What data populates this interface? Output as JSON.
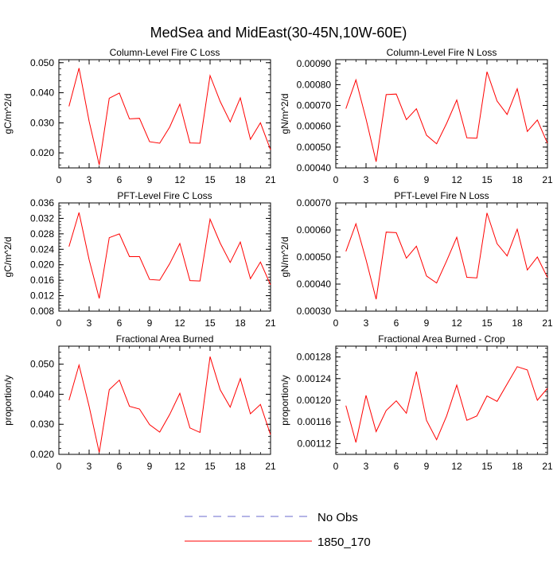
{
  "figure": {
    "title": "MedSea and MidEast(30-45N,10W-60E)",
    "legend": [
      {
        "label": "No Obs",
        "color": "#6a6acd",
        "dash": true
      },
      {
        "label": "1850_170",
        "color": "#ff0000",
        "dash": false
      }
    ]
  },
  "chart_data": [
    {
      "type": "line",
      "title": "Column-Level Fire C Loss",
      "ylabel": "gC/m^2/d",
      "xlim": [
        0,
        21
      ],
      "ylim": [
        0.015,
        0.051
      ],
      "xticks": [
        0,
        3,
        6,
        9,
        12,
        15,
        18,
        21
      ],
      "xtick_labels": [
        "0",
        "3",
        "6",
        "9",
        "12",
        "15",
        "18",
        "21"
      ],
      "yticks": [
        0.02,
        0.03,
        0.04,
        0.05
      ],
      "ytick_labels": [
        "0.020",
        "0.030",
        "0.040",
        "0.050"
      ],
      "x": [
        1,
        2,
        3,
        4,
        5,
        6,
        7,
        8,
        9,
        10,
        11,
        12,
        13,
        14,
        15,
        16,
        17,
        18,
        19,
        20,
        21
      ],
      "series": [
        {
          "name": "1850_170",
          "values": [
            0.0355,
            0.0482,
            0.0305,
            0.016,
            0.0382,
            0.0399,
            0.0313,
            0.0315,
            0.0237,
            0.0232,
            0.0286,
            0.0362,
            0.0233,
            0.0232,
            0.0457,
            0.0371,
            0.0303,
            0.0383,
            0.0245,
            0.03,
            0.021
          ]
        }
      ]
    },
    {
      "type": "line",
      "title": "Column-Level Fire N Loss",
      "ylabel": "gN/m^2/d",
      "xlim": [
        0,
        21
      ],
      "ylim": [
        0.0004,
        0.00092
      ],
      "xticks": [
        0,
        3,
        6,
        9,
        12,
        15,
        18,
        21
      ],
      "xtick_labels": [
        "0",
        "3",
        "6",
        "9",
        "12",
        "15",
        "18",
        "21"
      ],
      "yticks": [
        0.0004,
        0.0005,
        0.0006,
        0.0007,
        0.0008,
        0.0009
      ],
      "ytick_labels": [
        "0.00040",
        "0.00050",
        "0.00060",
        "0.00070",
        "0.00080",
        "0.00090"
      ],
      "x": [
        1,
        2,
        3,
        4,
        5,
        6,
        7,
        8,
        9,
        10,
        11,
        12,
        13,
        14,
        15,
        16,
        17,
        18,
        19,
        20,
        21
      ],
      "series": [
        {
          "name": "1850_170",
          "values": [
            0.000685,
            0.000823,
            0.000635,
            0.00043,
            0.000752,
            0.000755,
            0.000632,
            0.000684,
            0.000557,
            0.000516,
            0.000614,
            0.000726,
            0.000545,
            0.000543,
            0.000862,
            0.000721,
            0.000657,
            0.00078,
            0.000575,
            0.00063,
            0.000518
          ]
        }
      ]
    },
    {
      "type": "line",
      "title": "PFT-Level Fire C Loss",
      "ylabel": "gC/m^2/d",
      "xlim": [
        0,
        21
      ],
      "ylim": [
        0.008,
        0.036
      ],
      "xticks": [
        0,
        3,
        6,
        9,
        12,
        15,
        18,
        21
      ],
      "xtick_labels": [
        "0",
        "3",
        "6",
        "9",
        "12",
        "15",
        "18",
        "21"
      ],
      "yticks": [
        0.008,
        0.012,
        0.016,
        0.02,
        0.024,
        0.028,
        0.032,
        0.036
      ],
      "ytick_labels": [
        "0.008",
        "0.012",
        "0.016",
        "0.020",
        "0.024",
        "0.028",
        "0.032",
        "0.036"
      ],
      "x": [
        1,
        2,
        3,
        4,
        5,
        6,
        7,
        8,
        9,
        10,
        11,
        12,
        13,
        14,
        15,
        16,
        17,
        18,
        19,
        20,
        21
      ],
      "series": [
        {
          "name": "1850_170",
          "values": [
            0.0247,
            0.0335,
            0.0213,
            0.0113,
            0.027,
            0.028,
            0.0221,
            0.0221,
            0.0162,
            0.016,
            0.0203,
            0.0255,
            0.0159,
            0.0158,
            0.0318,
            0.0256,
            0.0206,
            0.0259,
            0.0164,
            0.0207,
            0.0148
          ]
        }
      ]
    },
    {
      "type": "line",
      "title": "PFT-Level Fire N Loss",
      "ylabel": "gN/m^2/d",
      "xlim": [
        0,
        21
      ],
      "ylim": [
        0.0003,
        0.0007
      ],
      "xticks": [
        0,
        3,
        6,
        9,
        12,
        15,
        18,
        21
      ],
      "xtick_labels": [
        "0",
        "3",
        "6",
        "9",
        "12",
        "15",
        "18",
        "21"
      ],
      "yticks": [
        0.0003,
        0.0004,
        0.0005,
        0.0006,
        0.0007
      ],
      "ytick_labels": [
        "0.00030",
        "0.00040",
        "0.00050",
        "0.00060",
        "0.00070"
      ],
      "x": [
        1,
        2,
        3,
        4,
        5,
        6,
        7,
        8,
        9,
        10,
        11,
        12,
        13,
        14,
        15,
        16,
        17,
        18,
        19,
        20,
        21
      ],
      "series": [
        {
          "name": "1850_170",
          "values": [
            0.000521,
            0.000623,
            0.00049,
            0.000344,
            0.000592,
            0.00059,
            0.000496,
            0.00054,
            0.00043,
            0.000404,
            0.000486,
            0.000573,
            0.000425,
            0.000423,
            0.000663,
            0.000549,
            0.000504,
            0.000603,
            0.000452,
            0.0005,
            0.000424
          ]
        }
      ]
    },
    {
      "type": "line",
      "title": "Fractional Area Burned",
      "ylabel": "proportion/y",
      "xlim": [
        0,
        21
      ],
      "ylim": [
        0.02,
        0.056
      ],
      "xticks": [
        0,
        3,
        6,
        9,
        12,
        15,
        18,
        21
      ],
      "xtick_labels": [
        "0",
        "3",
        "6",
        "9",
        "12",
        "15",
        "18",
        "21"
      ],
      "yticks": [
        0.02,
        0.03,
        0.04,
        0.05
      ],
      "ytick_labels": [
        "0.020",
        "0.030",
        "0.040",
        "0.050"
      ],
      "x": [
        1,
        2,
        3,
        4,
        5,
        6,
        7,
        8,
        9,
        10,
        11,
        12,
        13,
        14,
        15,
        16,
        17,
        18,
        19,
        20,
        21
      ],
      "series": [
        {
          "name": "1850_170",
          "values": [
            0.038,
            0.0497,
            0.036,
            0.0206,
            0.0415,
            0.0447,
            0.036,
            0.0351,
            0.0299,
            0.0274,
            0.0333,
            0.0403,
            0.0288,
            0.0273,
            0.0525,
            0.0415,
            0.0357,
            0.0452,
            0.0335,
            0.0366,
            0.0265
          ]
        }
      ]
    },
    {
      "type": "line",
      "title": "Fractional Area Burned - Crop",
      "ylabel": "proportion/y",
      "xlim": [
        0,
        21
      ],
      "ylim": [
        0.0011,
        0.0013
      ],
      "xticks": [
        0,
        3,
        6,
        9,
        12,
        15,
        18,
        21
      ],
      "xtick_labels": [
        "0",
        "3",
        "6",
        "9",
        "12",
        "15",
        "18",
        "21"
      ],
      "yticks": [
        0.00112,
        0.00116,
        0.0012,
        0.00124,
        0.00128
      ],
      "ytick_labels": [
        "0.00112",
        "0.00116",
        "0.00120",
        "0.00124",
        "0.00128"
      ],
      "x": [
        1,
        2,
        3,
        4,
        5,
        6,
        7,
        8,
        9,
        10,
        11,
        12,
        13,
        14,
        15,
        16,
        17,
        18,
        19,
        20,
        21
      ],
      "series": [
        {
          "name": "1850_170",
          "values": [
            0.00119,
            0.001122,
            0.001209,
            0.001142,
            0.001181,
            0.001199,
            0.001176,
            0.001253,
            0.001163,
            0.001127,
            0.001171,
            0.001228,
            0.001163,
            0.001171,
            0.001208,
            0.001198,
            0.00123,
            0.001262,
            0.001256,
            0.0012,
            0.001222
          ]
        }
      ]
    }
  ]
}
